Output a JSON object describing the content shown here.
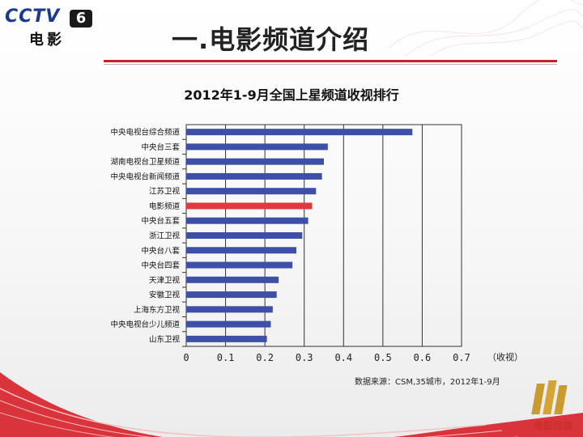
{
  "logo": {
    "top": "CCTV",
    "badge": "6",
    "sub": "电影"
  },
  "page_title": "一.电影频道介绍",
  "source_note": "数据来源：CSM,35城市，2012年1-9月",
  "brand_text": "电影频道",
  "colors": {
    "bar": "#3e4fa8",
    "highlight": "#e0393e",
    "accent_red": "#c8202a"
  },
  "chart_data": {
    "type": "bar",
    "orientation": "horizontal",
    "title": "2012年1-9月全国上星频道收视排行",
    "xlabel": "（收视）",
    "xlim": [
      0,
      0.7
    ],
    "xticks": [
      "0",
      "0.1",
      "0.2",
      "0.3",
      "0.4",
      "0.5",
      "0.6",
      "0.7"
    ],
    "grid": true,
    "highlight_category": "电影频道",
    "categories": [
      "中央电视台综合频道",
      "中央台三套",
      "湖南电视台卫星频道",
      "中央电视台新闻频道",
      "江苏卫视",
      "电影频道",
      "中央台五套",
      "浙江卫视",
      "中央台八套",
      "中央台四套",
      "天津卫视",
      "安徽卫视",
      "上海东方卫视",
      "中央电视台少儿频道",
      "山东卫视"
    ],
    "values": [
      0.575,
      0.36,
      0.35,
      0.345,
      0.33,
      0.32,
      0.31,
      0.295,
      0.28,
      0.27,
      0.235,
      0.23,
      0.22,
      0.215,
      0.205
    ]
  }
}
